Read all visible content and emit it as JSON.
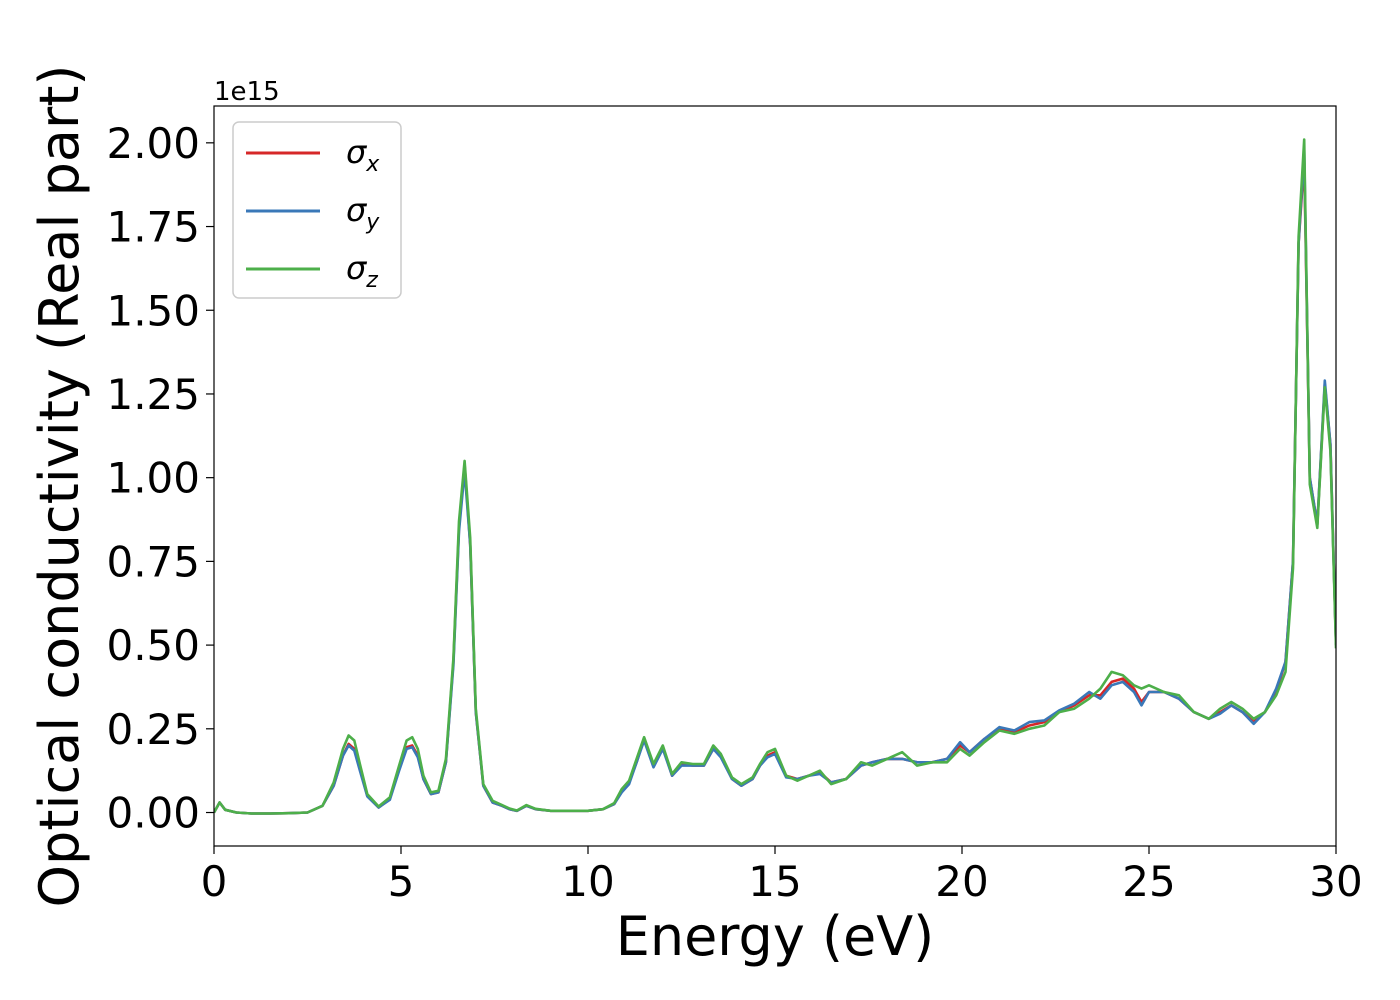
{
  "chart_data": {
    "type": "line",
    "title": "",
    "xlabel": "Energy (eV)",
    "ylabel": "Optical conductivity (Real part)",
    "y_offset_label": "1e15",
    "xlim": [
      0,
      30
    ],
    "ylim": [
      -0.1,
      2.11
    ],
    "x_ticks": [
      0,
      5,
      10,
      15,
      20,
      25,
      30
    ],
    "x_tick_labels": [
      "0",
      "5",
      "10",
      "15",
      "20",
      "25",
      "30"
    ],
    "y_ticks": [
      0.0,
      0.25,
      0.5,
      0.75,
      1.0,
      1.25,
      1.5,
      1.75,
      2.0
    ],
    "y_tick_labels": [
      "0.00",
      "0.25",
      "0.50",
      "0.75",
      "1.00",
      "1.25",
      "1.50",
      "1.75",
      "2.00"
    ],
    "grid": false,
    "legend_position": "top-left",
    "series": [
      {
        "name": "σx",
        "symbol": "σ",
        "subscript": "x",
        "color": "#d62728",
        "x": [
          0,
          0.15,
          0.3,
          0.6,
          1.0,
          1.5,
          2.0,
          2.5,
          2.9,
          3.2,
          3.45,
          3.6,
          3.75,
          3.9,
          4.1,
          4.4,
          4.7,
          4.95,
          5.15,
          5.3,
          5.45,
          5.6,
          5.8,
          6.0,
          6.2,
          6.4,
          6.55,
          6.7,
          6.85,
          7.0,
          7.2,
          7.45,
          7.7,
          7.9,
          8.1,
          8.35,
          8.6,
          9.0,
          9.5,
          10.0,
          10.4,
          10.7,
          10.9,
          11.1,
          11.3,
          11.5,
          11.75,
          12.0,
          12.25,
          12.5,
          12.8,
          13.1,
          13.35,
          13.55,
          13.85,
          14.1,
          14.4,
          14.6,
          14.8,
          15.0,
          15.3,
          15.6,
          15.9,
          16.2,
          16.5,
          16.9,
          17.3,
          17.6,
          18.0,
          18.4,
          18.8,
          19.2,
          19.6,
          19.95,
          20.2,
          20.6,
          21.0,
          21.4,
          21.8,
          22.2,
          22.6,
          23.0,
          23.4,
          23.7,
          24.0,
          24.3,
          24.6,
          24.8,
          25.0,
          25.4,
          25.8,
          26.2,
          26.6,
          26.9,
          27.2,
          27.5,
          27.8,
          28.1,
          28.4,
          28.65,
          28.85,
          29.0,
          29.15,
          29.3,
          29.5,
          29.7,
          29.85,
          30.0
        ],
        "y": [
          0.0,
          0.03,
          0.008,
          0.0,
          -0.003,
          -0.003,
          -0.002,
          0.0,
          0.02,
          0.08,
          0.17,
          0.205,
          0.19,
          0.13,
          0.05,
          0.015,
          0.04,
          0.13,
          0.195,
          0.2,
          0.17,
          0.1,
          0.055,
          0.06,
          0.15,
          0.45,
          0.85,
          1.04,
          0.8,
          0.3,
          0.08,
          0.03,
          0.02,
          0.01,
          0.005,
          0.02,
          0.01,
          0.005,
          0.005,
          0.005,
          0.01,
          0.025,
          0.065,
          0.09,
          0.15,
          0.22,
          0.14,
          0.195,
          0.11,
          0.145,
          0.14,
          0.14,
          0.19,
          0.17,
          0.1,
          0.08,
          0.1,
          0.14,
          0.17,
          0.18,
          0.11,
          0.1,
          0.11,
          0.12,
          0.09,
          0.1,
          0.14,
          0.15,
          0.16,
          0.16,
          0.15,
          0.15,
          0.16,
          0.2,
          0.18,
          0.22,
          0.25,
          0.24,
          0.26,
          0.27,
          0.3,
          0.32,
          0.35,
          0.35,
          0.39,
          0.4,
          0.37,
          0.33,
          0.36,
          0.36,
          0.34,
          0.3,
          0.28,
          0.3,
          0.32,
          0.3,
          0.27,
          0.3,
          0.36,
          0.45,
          0.75,
          1.7,
          1.95,
          1.0,
          0.86,
          1.28,
          1.1,
          0.5
        ]
      },
      {
        "name": "σy",
        "symbol": "σ",
        "subscript": "y",
        "color": "#3a78b8",
        "x": [
          0,
          0.15,
          0.3,
          0.6,
          1.0,
          1.5,
          2.0,
          2.5,
          2.9,
          3.2,
          3.45,
          3.6,
          3.75,
          3.9,
          4.1,
          4.4,
          4.7,
          4.95,
          5.15,
          5.3,
          5.45,
          5.6,
          5.8,
          6.0,
          6.2,
          6.4,
          6.55,
          6.7,
          6.85,
          7.0,
          7.2,
          7.45,
          7.7,
          7.9,
          8.1,
          8.35,
          8.6,
          9.0,
          9.5,
          10.0,
          10.4,
          10.7,
          10.9,
          11.1,
          11.3,
          11.5,
          11.75,
          12.0,
          12.25,
          12.5,
          12.8,
          13.1,
          13.35,
          13.55,
          13.85,
          14.1,
          14.4,
          14.6,
          14.8,
          15.0,
          15.3,
          15.6,
          15.9,
          16.2,
          16.5,
          16.9,
          17.3,
          17.6,
          18.0,
          18.4,
          18.8,
          19.2,
          19.6,
          19.95,
          20.2,
          20.6,
          21.0,
          21.4,
          21.8,
          22.2,
          22.6,
          23.0,
          23.4,
          23.7,
          24.0,
          24.3,
          24.6,
          24.8,
          25.0,
          25.4,
          25.8,
          26.2,
          26.6,
          26.9,
          27.2,
          27.5,
          27.8,
          28.1,
          28.4,
          28.65,
          28.85,
          29.0,
          29.15,
          29.3,
          29.5,
          29.7,
          29.85,
          30.0
        ],
        "y": [
          0.0,
          0.03,
          0.008,
          0.0,
          -0.003,
          -0.003,
          -0.002,
          0.0,
          0.02,
          0.08,
          0.17,
          0.2,
          0.185,
          0.125,
          0.048,
          0.015,
          0.038,
          0.125,
          0.19,
          0.195,
          0.165,
          0.1,
          0.055,
          0.06,
          0.15,
          0.44,
          0.84,
          1.02,
          0.8,
          0.3,
          0.08,
          0.03,
          0.02,
          0.01,
          0.005,
          0.02,
          0.01,
          0.005,
          0.005,
          0.005,
          0.01,
          0.025,
          0.06,
          0.085,
          0.15,
          0.215,
          0.135,
          0.19,
          0.11,
          0.14,
          0.14,
          0.14,
          0.19,
          0.165,
          0.1,
          0.08,
          0.1,
          0.14,
          0.165,
          0.175,
          0.105,
          0.1,
          0.11,
          0.115,
          0.09,
          0.1,
          0.14,
          0.15,
          0.16,
          0.16,
          0.15,
          0.15,
          0.16,
          0.21,
          0.18,
          0.22,
          0.255,
          0.245,
          0.27,
          0.275,
          0.305,
          0.325,
          0.36,
          0.34,
          0.38,
          0.39,
          0.36,
          0.32,
          0.36,
          0.36,
          0.34,
          0.3,
          0.28,
          0.295,
          0.32,
          0.3,
          0.265,
          0.3,
          0.37,
          0.45,
          0.75,
          1.7,
          1.98,
          1.0,
          0.86,
          1.29,
          1.1,
          0.5
        ]
      },
      {
        "name": "σz",
        "symbol": "σ",
        "subscript": "z",
        "color": "#4daf4a",
        "x": [
          0,
          0.15,
          0.3,
          0.6,
          1.0,
          1.5,
          2.0,
          2.5,
          2.9,
          3.2,
          3.45,
          3.6,
          3.75,
          3.9,
          4.1,
          4.4,
          4.7,
          4.95,
          5.15,
          5.3,
          5.45,
          5.6,
          5.8,
          6.0,
          6.2,
          6.4,
          6.55,
          6.7,
          6.85,
          7.0,
          7.2,
          7.45,
          7.7,
          7.9,
          8.1,
          8.35,
          8.6,
          9.0,
          9.5,
          10.0,
          10.4,
          10.7,
          10.9,
          11.1,
          11.3,
          11.5,
          11.75,
          12.0,
          12.25,
          12.5,
          12.8,
          13.1,
          13.35,
          13.55,
          13.85,
          14.1,
          14.4,
          14.6,
          14.8,
          15.0,
          15.3,
          15.6,
          15.9,
          16.2,
          16.5,
          16.9,
          17.3,
          17.6,
          18.0,
          18.4,
          18.8,
          19.2,
          19.6,
          19.95,
          20.2,
          20.6,
          21.0,
          21.4,
          21.8,
          22.2,
          22.6,
          23.0,
          23.4,
          23.7,
          24.0,
          24.3,
          24.6,
          24.8,
          25.0,
          25.4,
          25.8,
          26.2,
          26.6,
          26.9,
          27.2,
          27.5,
          27.8,
          28.1,
          28.4,
          28.65,
          28.85,
          29.0,
          29.15,
          29.3,
          29.5,
          29.7,
          29.85,
          30.0
        ],
        "y": [
          0.0,
          0.03,
          0.008,
          0.0,
          -0.003,
          -0.003,
          -0.002,
          0.0,
          0.02,
          0.09,
          0.19,
          0.23,
          0.215,
          0.145,
          0.055,
          0.018,
          0.045,
          0.14,
          0.215,
          0.225,
          0.19,
          0.11,
          0.06,
          0.065,
          0.16,
          0.46,
          0.87,
          1.05,
          0.82,
          0.31,
          0.085,
          0.035,
          0.022,
          0.012,
          0.006,
          0.022,
          0.011,
          0.005,
          0.005,
          0.005,
          0.01,
          0.028,
          0.07,
          0.095,
          0.16,
          0.225,
          0.145,
          0.2,
          0.115,
          0.15,
          0.145,
          0.145,
          0.2,
          0.175,
          0.105,
          0.085,
          0.105,
          0.145,
          0.18,
          0.19,
          0.11,
          0.095,
          0.11,
          0.125,
          0.085,
          0.1,
          0.15,
          0.14,
          0.16,
          0.18,
          0.14,
          0.15,
          0.15,
          0.19,
          0.17,
          0.21,
          0.245,
          0.235,
          0.25,
          0.26,
          0.3,
          0.31,
          0.34,
          0.37,
          0.42,
          0.41,
          0.38,
          0.37,
          0.38,
          0.36,
          0.35,
          0.3,
          0.28,
          0.31,
          0.33,
          0.31,
          0.28,
          0.3,
          0.35,
          0.42,
          0.73,
          1.72,
          2.01,
          0.98,
          0.85,
          1.27,
          1.08,
          0.49
        ]
      }
    ]
  }
}
